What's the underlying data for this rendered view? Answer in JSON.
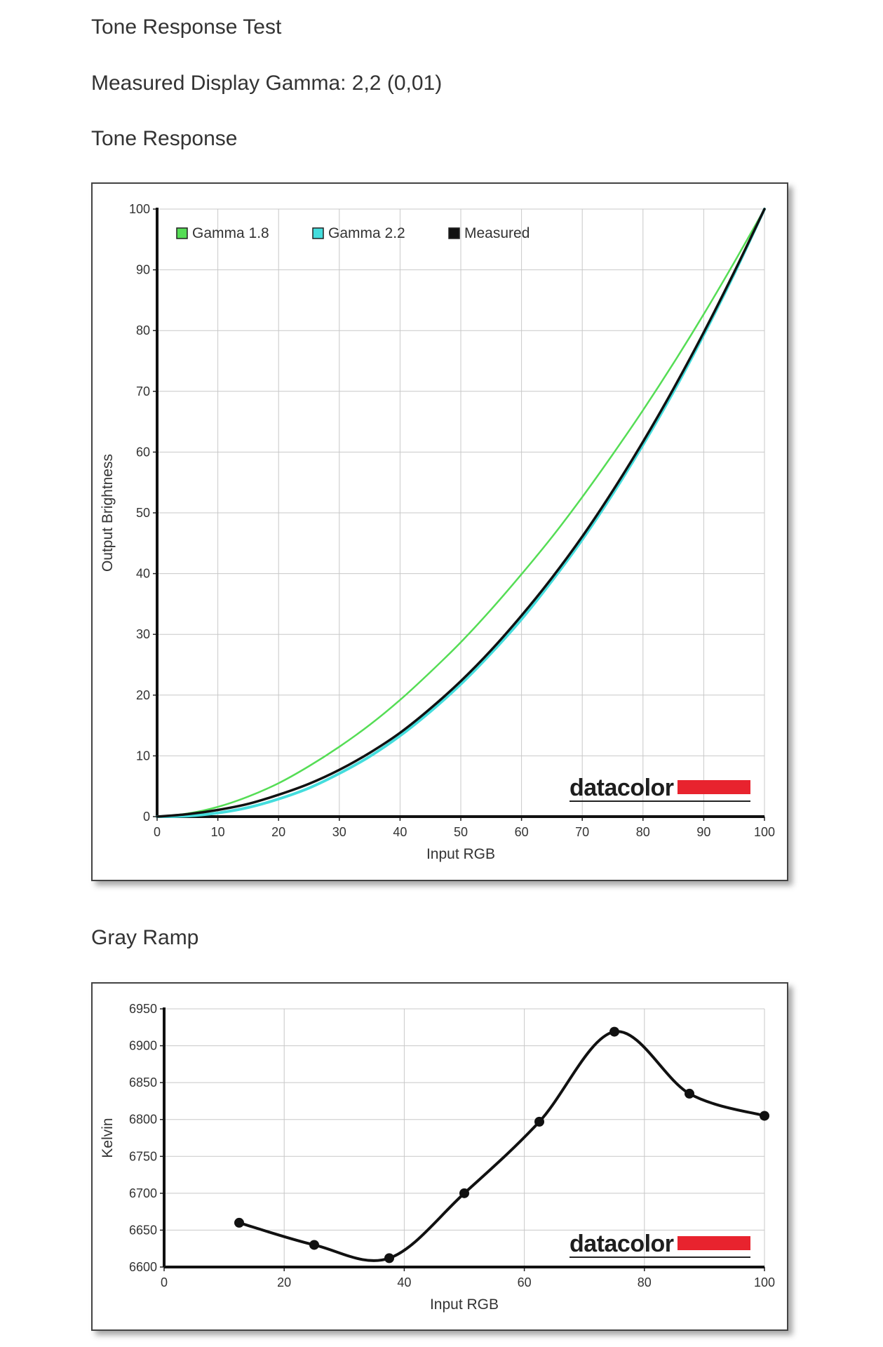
{
  "page": {
    "title": "Tone Response Test",
    "gamma_text": "Measured Display Gamma: 2,2 (0,01)",
    "section1": "Tone Response",
    "section2": "Gray Ramp"
  },
  "brand": {
    "name": "datacolor",
    "bar_color": "#e8232e"
  },
  "chart_data": [
    {
      "type": "line",
      "xlabel": "Input RGB",
      "ylabel": "Output Brightness",
      "xlim": [
        0,
        100
      ],
      "ylim": [
        0,
        100
      ],
      "xticks": [
        "0",
        "10",
        "20",
        "30",
        "40",
        "50",
        "60",
        "70",
        "80",
        "90",
        "100"
      ],
      "yticks": [
        "0",
        "10",
        "20",
        "30",
        "40",
        "50",
        "60",
        "70",
        "80",
        "90",
        "100"
      ],
      "grid": true,
      "legend_position": "top-left",
      "series": [
        {
          "name": "Gamma 1.8",
          "color": "#55dd55",
          "x": [
            0,
            5,
            10,
            15,
            20,
            25,
            30,
            35,
            40,
            45,
            50,
            55,
            60,
            65,
            70,
            75,
            80,
            85,
            90,
            95,
            100
          ],
          "y": [
            0,
            0.5,
            1.6,
            3.3,
            5.5,
            8.3,
            11.5,
            15.1,
            19.2,
            23.8,
            28.7,
            34.1,
            39.9,
            46.0,
            52.6,
            59.6,
            66.9,
            74.6,
            82.7,
            91.2,
            100
          ]
        },
        {
          "name": "Gamma 2.2",
          "color": "#44dddd",
          "x": [
            0,
            5,
            10,
            15,
            20,
            25,
            30,
            35,
            40,
            45,
            50,
            55,
            60,
            65,
            70,
            75,
            80,
            85,
            90,
            95,
            100
          ],
          "y": [
            0,
            0.1,
            0.6,
            1.5,
            2.9,
            4.7,
            7.1,
            9.9,
            13.3,
            17.3,
            21.8,
            26.9,
            32.5,
            38.8,
            45.6,
            53.1,
            61.2,
            69.9,
            79.3,
            89.3,
            100
          ]
        },
        {
          "name": "Measured",
          "color": "#111111",
          "x": [
            0,
            5,
            10,
            15,
            20,
            25,
            30,
            35,
            40,
            45,
            50,
            55,
            60,
            65,
            70,
            75,
            80,
            85,
            90,
            95,
            100
          ],
          "y": [
            0,
            0.4,
            1.1,
            2.1,
            3.6,
            5.4,
            7.7,
            10.5,
            13.8,
            17.8,
            22.3,
            27.4,
            33.1,
            39.3,
            46.1,
            53.6,
            61.7,
            70.4,
            79.7,
            89.6,
            100
          ]
        }
      ]
    },
    {
      "type": "line",
      "xlabel": "Input RGB",
      "ylabel": "Kelvin",
      "xlim": [
        0,
        100
      ],
      "ylim": [
        6600,
        6950
      ],
      "xticks": [
        "0",
        "20",
        "40",
        "60",
        "80",
        "100"
      ],
      "yticks": [
        "6600",
        "6650",
        "6700",
        "6750",
        "6800",
        "6850",
        "6900",
        "6950"
      ],
      "grid": true,
      "series": [
        {
          "color": "#111111",
          "x": [
            12.5,
            25,
            37.5,
            50,
            62.5,
            75,
            87.5,
            100
          ],
          "y": [
            6660,
            6630,
            6612,
            6700,
            6797,
            6919,
            6835,
            6805
          ]
        }
      ]
    }
  ]
}
